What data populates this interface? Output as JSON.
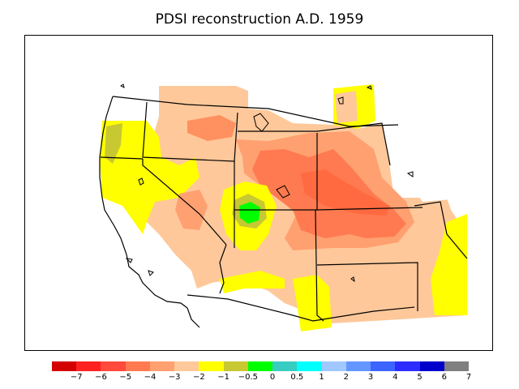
{
  "title": "PDSI reconstruction A.D. 1959",
  "legend": {
    "colors": [
      "#d40000",
      "#ff2020",
      "#ff4a3c",
      "#ff7a50",
      "#ffa070",
      "#ffc89a",
      "#ffff00",
      "#c8c832",
      "#00ff00",
      "#37cdc2",
      "#00ffff",
      "#a0c8ff",
      "#6496ff",
      "#3c64ff",
      "#2d2dff",
      "#0000cd",
      "#808080"
    ],
    "ticks": [
      "−7",
      "−6",
      "−5",
      "−4",
      "−3",
      "−2",
      "−1",
      "−0.5",
      "0",
      "0.5",
      "1",
      "2",
      "3",
      "4",
      "5",
      "6",
      "7"
    ]
  },
  "map": {
    "field_colors": {
      "moderate_dry": "#ffc89a",
      "dry": "#ffa070",
      "very_dry": "#ff7a50",
      "near_normal_dry": "#ffff00",
      "slightly_dry": "#c8c832",
      "normal": "#00ff00"
    }
  }
}
